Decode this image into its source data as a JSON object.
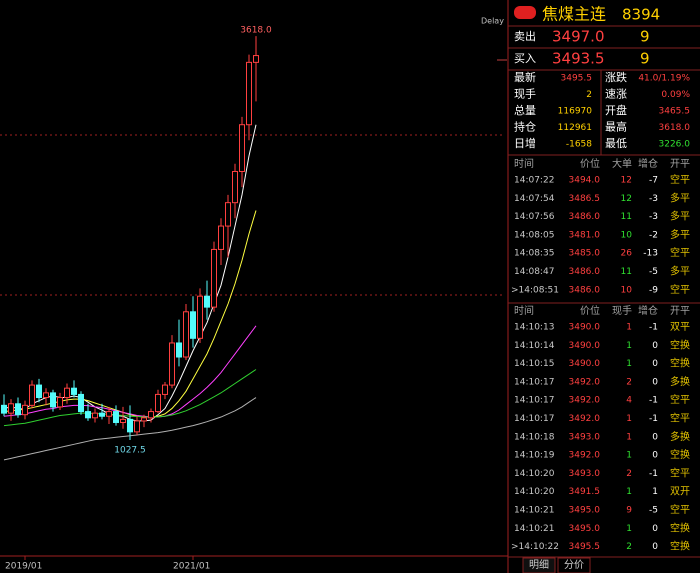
{
  "chart_data": {
    "type": "candlestick",
    "ylim": [
      290,
      3850
    ],
    "up_color": "#ff4040",
    "down_color": "#54fcfc",
    "candles": [
      {
        "open": 1250,
        "high": 1320,
        "low": 1180,
        "close": 1200
      },
      {
        "open": 1200,
        "high": 1290,
        "low": 1150,
        "close": 1260
      },
      {
        "open": 1260,
        "high": 1300,
        "low": 1170,
        "close": 1190
      },
      {
        "open": 1190,
        "high": 1280,
        "low": 1160,
        "close": 1250
      },
      {
        "open": 1250,
        "high": 1410,
        "low": 1230,
        "close": 1380
      },
      {
        "open": 1380,
        "high": 1420,
        "low": 1270,
        "close": 1300
      },
      {
        "open": 1300,
        "high": 1360,
        "low": 1250,
        "close": 1330
      },
      {
        "open": 1330,
        "high": 1350,
        "low": 1210,
        "close": 1240
      },
      {
        "open": 1240,
        "high": 1330,
        "low": 1220,
        "close": 1300
      },
      {
        "open": 1300,
        "high": 1390,
        "low": 1260,
        "close": 1360
      },
      {
        "open": 1360,
        "high": 1410,
        "low": 1300,
        "close": 1320
      },
      {
        "open": 1320,
        "high": 1340,
        "low": 1190,
        "close": 1210
      },
      {
        "open": 1210,
        "high": 1260,
        "low": 1150,
        "close": 1170
      },
      {
        "open": 1170,
        "high": 1230,
        "low": 1140,
        "close": 1200
      },
      {
        "open": 1200,
        "high": 1260,
        "low": 1160,
        "close": 1180
      },
      {
        "open": 1180,
        "high": 1240,
        "low": 1130,
        "close": 1210
      },
      {
        "open": 1210,
        "high": 1250,
        "low": 1120,
        "close": 1140
      },
      {
        "open": 1140,
        "high": 1240,
        "low": 1100,
        "close": 1160
      },
      {
        "open": 1160,
        "high": 1250,
        "low": 1027.5,
        "close": 1080
      },
      {
        "open": 1080,
        "high": 1180,
        "low": 1060,
        "close": 1150
      },
      {
        "open": 1150,
        "high": 1190,
        "low": 1110,
        "close": 1170
      },
      {
        "open": 1170,
        "high": 1230,
        "low": 1140,
        "close": 1210
      },
      {
        "open": 1210,
        "high": 1350,
        "low": 1200,
        "close": 1320
      },
      {
        "open": 1320,
        "high": 1400,
        "low": 1290,
        "close": 1380
      },
      {
        "open": 1380,
        "high": 1700,
        "low": 1360,
        "close": 1650
      },
      {
        "open": 1650,
        "high": 1800,
        "low": 1500,
        "close": 1560
      },
      {
        "open": 1560,
        "high": 1900,
        "low": 1540,
        "close": 1850
      },
      {
        "open": 1850,
        "high": 1950,
        "low": 1620,
        "close": 1680
      },
      {
        "open": 1680,
        "high": 2000,
        "low": 1650,
        "close": 1950
      },
      {
        "open": 1950,
        "high": 2050,
        "low": 1800,
        "close": 1880
      },
      {
        "open": 1880,
        "high": 2300,
        "low": 1850,
        "close": 2250
      },
      {
        "open": 2250,
        "high": 2450,
        "low": 2150,
        "close": 2400
      },
      {
        "open": 2400,
        "high": 2600,
        "low": 2200,
        "close": 2550
      },
      {
        "open": 2550,
        "high": 2800,
        "low": 2450,
        "close": 2750
      },
      {
        "open": 2750,
        "high": 3100,
        "low": 2650,
        "close": 3050
      },
      {
        "open": 3050,
        "high": 3500,
        "low": 2950,
        "close": 3450
      },
      {
        "open": 3450,
        "high": 3618,
        "low": 3200,
        "close": 3493.5
      }
    ],
    "ma_lines": [
      {
        "color": "#ffffff",
        "values": [
          1230,
          1240,
          1230,
          1225,
          1260,
          1280,
          1300,
          1310,
          1300,
          1300,
          1310,
          1300,
          1270,
          1240,
          1220,
          1195,
          1185,
          1180,
          1160,
          1150,
          1150,
          1155,
          1190,
          1230,
          1310,
          1400,
          1500,
          1600,
          1690,
          1780,
          1900,
          2020,
          2200,
          2400,
          2600,
          2850,
          3050
        ]
      },
      {
        "color": "#ffff40",
        "values": [
          1210,
          1215,
          1220,
          1225,
          1235,
          1245,
          1255,
          1265,
          1275,
          1285,
          1290,
          1290,
          1280,
          1265,
          1250,
          1235,
          1220,
          1205,
          1190,
          1180,
          1175,
          1175,
          1180,
          1195,
          1230,
          1280,
          1340,
          1420,
          1500,
          1580,
          1680,
          1790,
          1900,
          2030,
          2180,
          2350,
          2500
        ]
      },
      {
        "color": "#ff40ff",
        "values": [
          1180,
          1185,
          1190,
          1195,
          1205,
          1215,
          1225,
          1230,
          1240,
          1245,
          1250,
          1250,
          1248,
          1240,
          1235,
          1225,
          1215,
          1205,
          1195,
          1185,
          1180,
          1175,
          1175,
          1180,
          1195,
          1220,
          1255,
          1290,
          1325,
          1365,
          1410,
          1460,
          1520,
          1580,
          1640,
          1700,
          1760
        ]
      },
      {
        "color": "#30d030",
        "values": [
          1120,
          1125,
          1130,
          1135,
          1145,
          1155,
          1165,
          1175,
          1185,
          1190,
          1195,
          1200,
          1200,
          1198,
          1195,
          1192,
          1188,
          1185,
          1180,
          1178,
          1176,
          1175,
          1176,
          1180,
          1188,
          1200,
          1215,
          1235,
          1255,
          1280,
          1305,
          1330,
          1360,
          1390,
          1420,
          1450,
          1480
        ]
      },
      {
        "color": "#b0b0b0",
        "values": [
          900,
          910,
          920,
          930,
          940,
          950,
          960,
          970,
          980,
          990,
          1000,
          1010,
          1020,
          1030,
          1035,
          1040,
          1045,
          1050,
          1055,
          1060,
          1065,
          1070,
          1075,
          1082,
          1090,
          1100,
          1110,
          1120,
          1132,
          1145,
          1160,
          1175,
          1195,
          1215,
          1240,
          1270,
          1300
        ]
      }
    ],
    "xticks": [
      {
        "value": 3,
        "label": "2019/01"
      },
      {
        "value": 27,
        "label": "2021/01"
      }
    ],
    "annotations": [
      {
        "index": 36,
        "value": 3618,
        "label": "3618.0",
        "color": "#ff6060"
      },
      {
        "index": 18,
        "value": 1027.5,
        "label": "1027.5",
        "color": "#70d8e8"
      }
    ],
    "delay_label": "Delay"
  },
  "quote_panel": {
    "title": "焦煤主连",
    "code": "8394",
    "quote": [
      {
        "label": "卖出",
        "price": "3497.0",
        "qty": "9"
      },
      {
        "label": "买入",
        "price": "3493.5",
        "qty": "9"
      }
    ],
    "stats": [
      {
        "l1": "最新",
        "v1": "3495.5",
        "c1": "#ff4040",
        "l2": "涨跌",
        "v2": "41.0/1.19%",
        "c2": "#ff4040"
      },
      {
        "l1": "现手",
        "v1": "2",
        "c1": "#ffd000",
        "l2": "速涨",
        "v2": "0.09%",
        "c2": "#ff4040"
      },
      {
        "l1": "总量",
        "v1": "116970",
        "c1": "#ffd000",
        "l2": "开盘",
        "v2": "3465.5",
        "c2": "#ff4040"
      },
      {
        "l1": "持仓",
        "v1": "112961",
        "c1": "#ffd000",
        "l2": "最高",
        "v2": "3618.0",
        "c2": "#ff4040"
      },
      {
        "l1": "日增",
        "v1": "-1658",
        "c1": "#ffd000",
        "l2": "最低",
        "v2": "3226.0",
        "c2": "#30e030"
      }
    ],
    "big_trades": {
      "header": [
        "时间",
        "价位",
        "大单",
        "增仓",
        "开平"
      ],
      "rows": [
        {
          "time": "14:07:22",
          "price": "3494.0",
          "qty": "12",
          "change": "-7",
          "oc": "空平",
          "qty_color": "#ff4040"
        },
        {
          "time": "14:07:54",
          "price": "3486.5",
          "qty": "12",
          "change": "-3",
          "oc": "多平",
          "qty_color": "#30e030"
        },
        {
          "time": "14:07:56",
          "price": "3486.0",
          "qty": "11",
          "change": "-3",
          "oc": "多平",
          "qty_color": "#30e030"
        },
        {
          "time": "14:08:05",
          "price": "3481.0",
          "qty": "10",
          "change": "-2",
          "oc": "多平",
          "qty_color": "#30e030"
        },
        {
          "time": "14:08:35",
          "price": "3485.0",
          "qty": "26",
          "change": "-13",
          "oc": "空平",
          "qty_color": "#ff4040"
        },
        {
          "time": "14:08:47",
          "price": "3486.0",
          "qty": "11",
          "change": "-5",
          "oc": "多平",
          "qty_color": "#30e030"
        },
        {
          "time": ">14:08:51",
          "price": "3486.0",
          "qty": "10",
          "change": "-9",
          "oc": "空平",
          "qty_color": "#ff4040"
        }
      ]
    },
    "ticks": {
      "header": [
        "时间",
        "价位",
        "现手",
        "增仓",
        "开平"
      ],
      "rows": [
        {
          "time": "14:10:13",
          "price": "3490.0",
          "qty": "1",
          "change": "-1",
          "oc": "双平",
          "qty_color": "#ff4040"
        },
        {
          "time": "14:10:14",
          "price": "3490.0",
          "qty": "1",
          "change": "0",
          "oc": "空换",
          "qty_color": "#30e030"
        },
        {
          "time": "14:10:15",
          "price": "3490.0",
          "qty": "1",
          "change": "0",
          "oc": "空换",
          "qty_color": "#30e030"
        },
        {
          "time": "14:10:17",
          "price": "3492.0",
          "qty": "2",
          "change": "0",
          "oc": "多换",
          "qty_color": "#ff4040"
        },
        {
          "time": "14:10:17",
          "price": "3492.0",
          "qty": "4",
          "change": "-1",
          "oc": "空平",
          "qty_color": "#ff4040"
        },
        {
          "time": "14:10:17",
          "price": "3492.0",
          "qty": "1",
          "change": "-1",
          "oc": "空平",
          "qty_color": "#ff4040"
        },
        {
          "time": "14:10:18",
          "price": "3493.0",
          "qty": "1",
          "change": "0",
          "oc": "多换",
          "qty_color": "#ff4040"
        },
        {
          "time": "14:10:19",
          "price": "3492.0",
          "qty": "1",
          "change": "0",
          "oc": "空换",
          "qty_color": "#30e030"
        },
        {
          "time": "14:10:20",
          "price": "3493.0",
          "qty": "2",
          "change": "-1",
          "oc": "空平",
          "qty_color": "#ff4040"
        },
        {
          "time": "14:10:20",
          "price": "3491.5",
          "qty": "1",
          "change": "1",
          "oc": "双开",
          "qty_color": "#30e030"
        },
        {
          "time": "14:10:21",
          "price": "3495.0",
          "qty": "9",
          "change": "-5",
          "oc": "空平",
          "qty_color": "#ff4040"
        },
        {
          "time": "14:10:21",
          "price": "3495.0",
          "qty": "1",
          "change": "0",
          "oc": "空换",
          "qty_color": "#30e030"
        },
        {
          "time": ">14:10:22",
          "price": "3495.5",
          "qty": "2",
          "change": "0",
          "oc": "空换",
          "qty_color": "#30e030"
        }
      ]
    },
    "tabs": [
      "明细",
      "分价"
    ]
  }
}
